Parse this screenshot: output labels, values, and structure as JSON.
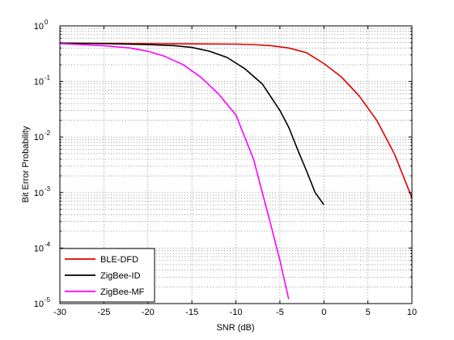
{
  "chart_data": {
    "type": "line",
    "title": "",
    "xlabel": "SNR (dB)",
    "ylabel": "Bit Error Probability",
    "xlim": [
      -30,
      10
    ],
    "ylim": [
      1e-05,
      1
    ],
    "yscale": "log",
    "grid": true,
    "legend_position": "bottom-left",
    "x_ticks": [
      -30,
      -25,
      -20,
      -15,
      -10,
      -5,
      0,
      5,
      10
    ],
    "x_tick_labels": [
      "-30",
      "-25",
      "-20",
      "-15",
      "-10",
      "-5",
      "0",
      "5",
      "10"
    ],
    "y_ticks": [
      {
        "value": 1,
        "base": "10",
        "exp": "0"
      },
      {
        "value": 0.1,
        "base": "10",
        "exp": "-1"
      },
      {
        "value": 0.01,
        "base": "10",
        "exp": "-2"
      },
      {
        "value": 0.001,
        "base": "10",
        "exp": "-3"
      },
      {
        "value": 0.0001,
        "base": "10",
        "exp": "-4"
      },
      {
        "value": 1e-05,
        "base": "10",
        "exp": "-5"
      }
    ],
    "series": [
      {
        "name": "BLE-DFD",
        "color": "#e00000",
        "x": [
          -30,
          -25,
          -20,
          -15,
          -10,
          -8,
          -6,
          -4,
          -2,
          0,
          2,
          4,
          6,
          8,
          10
        ],
        "y": [
          0.49,
          0.485,
          0.48,
          0.475,
          0.47,
          0.46,
          0.44,
          0.4,
          0.33,
          0.21,
          0.12,
          0.055,
          0.02,
          0.005,
          0.0008
        ]
      },
      {
        "name": "ZigBee-ID",
        "color": "#000000",
        "x": [
          -30,
          -25,
          -20,
          -17,
          -15,
          -13,
          -11,
          -9,
          -7,
          -5,
          -4,
          -3,
          -2,
          -1,
          0
        ],
        "y": [
          0.49,
          0.48,
          0.46,
          0.44,
          0.41,
          0.35,
          0.27,
          0.17,
          0.09,
          0.03,
          0.015,
          0.006,
          0.0025,
          0.001,
          0.0006
        ]
      },
      {
        "name": "ZigBee-MF",
        "color": "#ff00ff",
        "x": [
          -30,
          -25,
          -22,
          -20,
          -18,
          -16,
          -14,
          -12,
          -10,
          -8,
          -7,
          -6,
          -5,
          -4
        ],
        "y": [
          0.48,
          0.44,
          0.4,
          0.35,
          0.28,
          0.2,
          0.12,
          0.06,
          0.025,
          0.004,
          0.001,
          0.00025,
          6e-05,
          1.2e-05
        ]
      }
    ]
  }
}
